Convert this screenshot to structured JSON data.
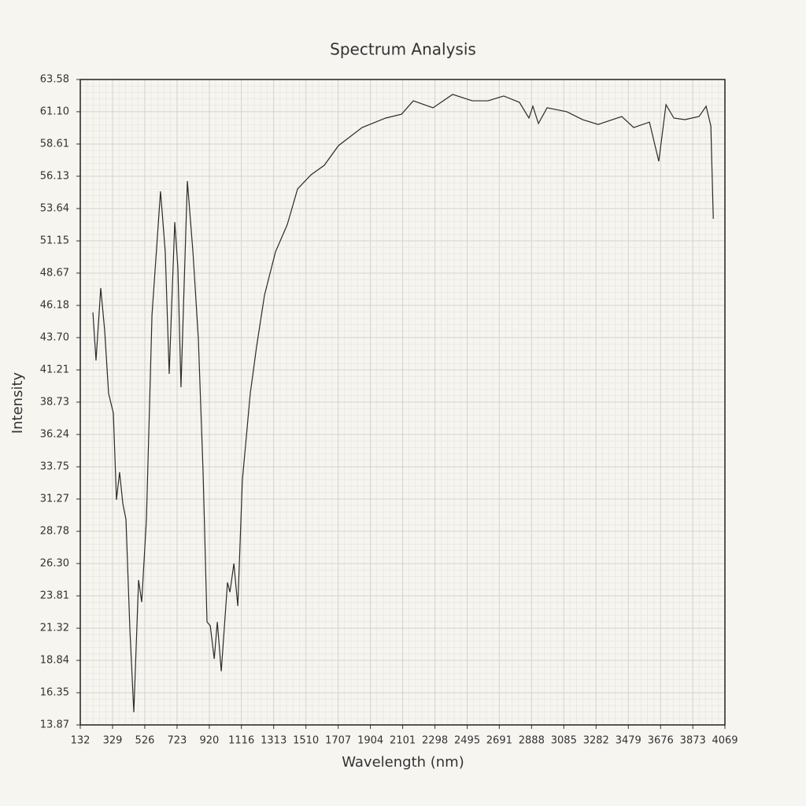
{
  "chart_data": {
    "type": "line",
    "title": "Spectrum Analysis",
    "x_label": "Wavelength (nm)",
    "y_label": "Intensity",
    "x": [
      209,
      228,
      257,
      281,
      305,
      334,
      353,
      372,
      392,
      411,
      435,
      459,
      488,
      507,
      536,
      570,
      622,
      651,
      675,
      709,
      728,
      747,
      786,
      820,
      853,
      882,
      906,
      926,
      950,
      969,
      993,
      1031,
      1046,
      1070,
      1094,
      1122,
      1170,
      1209,
      1257,
      1324,
      1396,
      1459,
      1541,
      1622,
      1709,
      1853,
      1997,
      2094,
      2166,
      2286,
      2406,
      2526,
      2622,
      2718,
      2814,
      2872,
      2896,
      2930,
      2983,
      3103,
      3199,
      3295,
      3439,
      3512,
      3608,
      3665,
      3709,
      3757,
      3824,
      3911,
      3954,
      3983,
      3998
    ],
    "series": [
      {
        "name": "Intensity",
        "color": "#2b2b2b",
        "values": [
          45.64,
          41.94,
          47.52,
          44.24,
          39.39,
          37.88,
          31.21,
          33.33,
          30.9,
          29.7,
          21.2,
          14.85,
          25.03,
          23.33,
          29.7,
          45.45,
          54.97,
          50.3,
          40.91,
          52.6,
          49.1,
          39.88,
          55.76,
          50.3,
          43.64,
          33.33,
          21.8,
          21.5,
          18.96,
          21.8,
          18.0,
          24.84,
          24.1,
          26.3,
          23.03,
          32.73,
          39.39,
          43.03,
          46.97,
          50.3,
          52.4,
          55.15,
          56.24,
          56.97,
          58.49,
          59.88,
          60.61,
          60.91,
          61.94,
          61.4,
          62.43,
          61.94,
          61.94,
          62.31,
          61.82,
          60.61,
          61.52,
          60.19,
          61.4,
          61.1,
          60.49,
          60.12,
          60.73,
          59.88,
          60.3,
          57.28,
          61.64,
          60.61,
          60.49,
          60.73,
          61.52,
          60.0,
          52.85
        ]
      }
    ],
    "xlim": [
      132,
      4069
    ],
    "xticks": [
      132,
      329,
      526,
      723,
      920,
      1116,
      1313,
      1510,
      1707,
      1904,
      2101,
      2298,
      2495,
      2691,
      2888,
      3085,
      3282,
      3479,
      3676,
      3873,
      4069
    ],
    "ylim": [
      13.87,
      63.58
    ],
    "yticks": [
      13.87,
      16.35,
      18.84,
      21.32,
      23.81,
      {
        "value": 26.3,
        "label": "26.30"
      },
      28.78,
      31.27,
      33.75,
      36.24,
      38.73,
      41.21,
      {
        "value": 43.7,
        "label": "43.70"
      },
      46.18,
      48.67,
      51.15,
      53.64,
      56.13,
      58.61,
      {
        "value": 61.1,
        "label": "61.10"
      },
      63.58
    ],
    "grid": true
  }
}
